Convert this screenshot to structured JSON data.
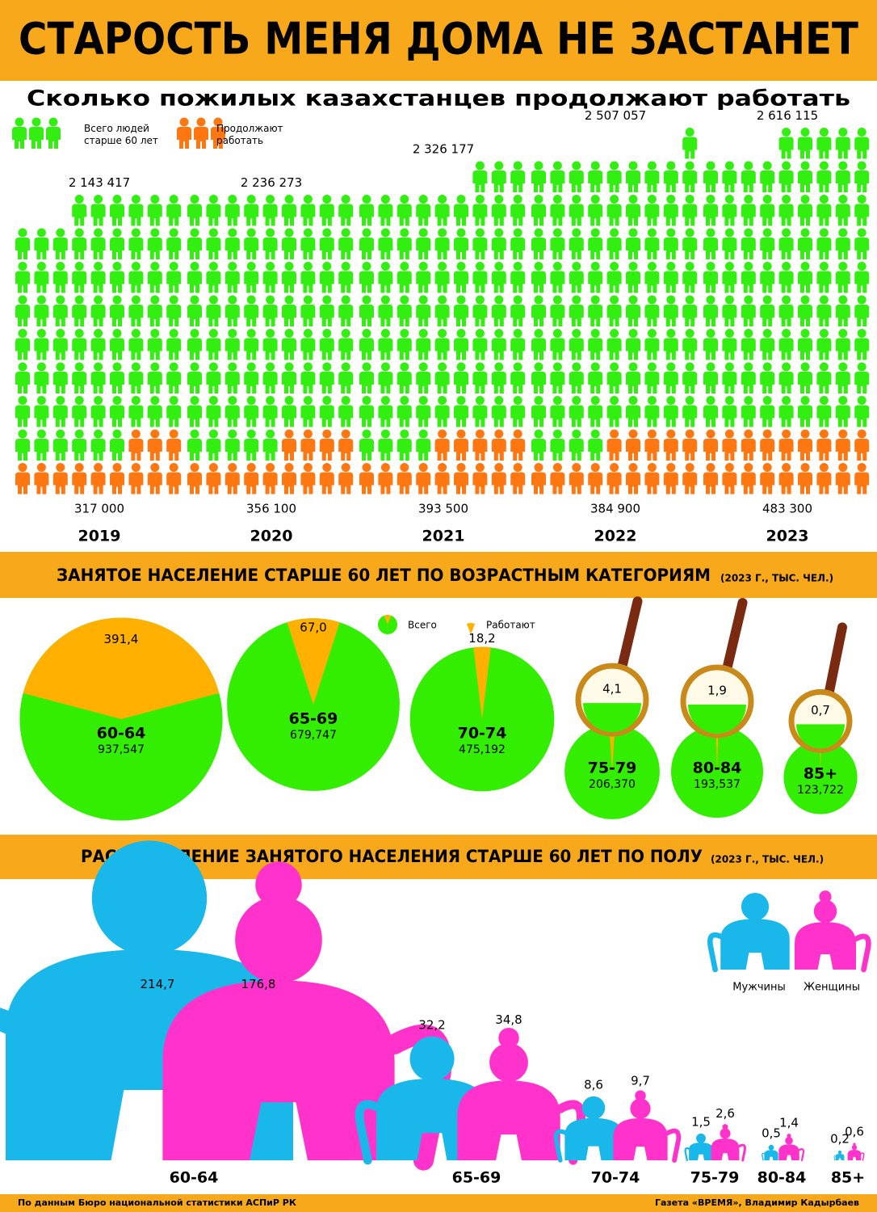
{
  "title": "СТАРОСТЬ МЕНЯ ДОМА НЕ ЗАСТАНЕТ",
  "footer": {
    "source": "По данным Бюро национальной статистики АСПиР РК",
    "credit": "Газета «ВРЕМЯ», Владимир Кадырбаев"
  },
  "chart_data": [
    {
      "type": "pictogram",
      "title": "Сколько пожилых казахстанцев продолжают работать",
      "categories": [
        "2019",
        "2020",
        "2021",
        "2022",
        "2023"
      ],
      "series": [
        {
          "name": "Всего людей старше 60 лет",
          "color": "#33ee11",
          "values": [
            2143417,
            2236273,
            2326177,
            2507057,
            2616115
          ],
          "value_labels": [
            "2 143 417",
            "2 236 273",
            "2 326 177",
            "2 507 057",
            "2 616 115"
          ]
        },
        {
          "name": "Продолжают работать",
          "color": "#ff7711",
          "values": [
            317000,
            356100,
            393500,
            384900,
            483300
          ],
          "value_labels": [
            "317 000",
            "356 100",
            "393 500",
            "384 900",
            "483 300"
          ]
        }
      ]
    },
    {
      "type": "pie",
      "title": "ЗАНЯТОЕ НАСЕЛЕНИЕ СТАРШЕ 60 ЛЕТ ПО ВОЗРАСТНЫМ КАТЕГОРИЯМ",
      "subtitle": "(2023 г., тыс. чел.)",
      "categories": [
        "60-64",
        "65-69",
        "70-74",
        "75-79",
        "80-84",
        "85+"
      ],
      "series": [
        {
          "name": "Всего",
          "color": "#33ee00",
          "values": [
            937.547,
            679.747,
            475.192,
            206.37,
            193.537,
            123.722
          ],
          "value_labels": [
            "937,547",
            "679,747",
            "475,192",
            "206,370",
            "193,537",
            "123,722"
          ]
        },
        {
          "name": "Работают",
          "color": "#ffb000",
          "values": [
            391.4,
            67.0,
            18.2,
            4.1,
            1.9,
            0.7
          ],
          "value_labels": [
            "391,4",
            "67,0",
            "18,2",
            "4,1",
            "1,9",
            "0,7"
          ]
        }
      ]
    },
    {
      "type": "gender",
      "title": "РАСПРЕДЕЛЕНИЕ ЗАНЯТОГО НАСЕЛЕНИЯ СТАРШЕ 60 ЛЕТ ПО ПОЛУ",
      "subtitle": "(2023 г., тыс. чел.)",
      "categories": [
        "60-64",
        "65-69",
        "70-74",
        "75-79",
        "80-84",
        "85+"
      ],
      "series": [
        {
          "name": "Мужчины",
          "color": "#1ab7ea",
          "values": [
            214.7,
            32.2,
            8.6,
            1.5,
            0.5,
            0.2
          ],
          "value_labels": [
            "214,7",
            "32,2",
            "8,6",
            "1,5",
            "0,5",
            "0,2"
          ]
        },
        {
          "name": "Женщины",
          "color": "#ff33cc",
          "values": [
            176.8,
            34.8,
            9.7,
            2.6,
            1.4,
            0.6
          ],
          "value_labels": [
            "176,8",
            "34,8",
            "9,7",
            "2,6",
            "1,4",
            "0,6"
          ]
        }
      ]
    }
  ]
}
